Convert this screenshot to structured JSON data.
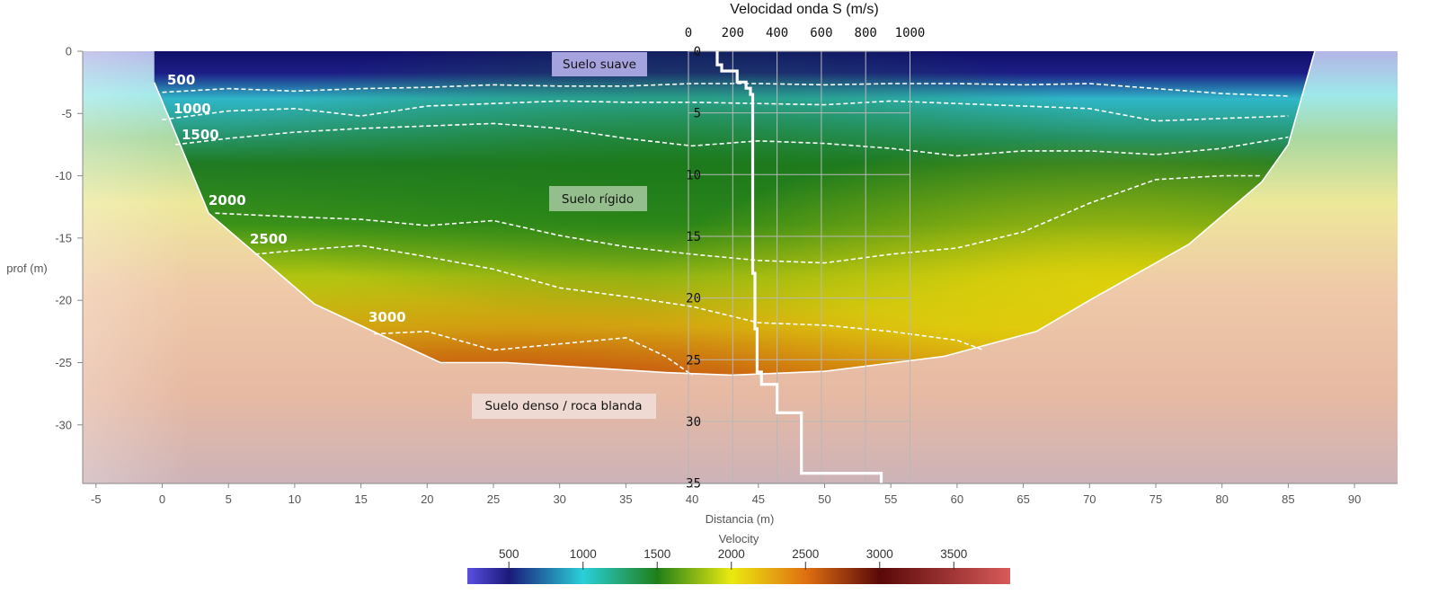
{
  "chart_data": [
    {
      "type": "heatmap",
      "title": "",
      "xlabel": "Distancia (m)",
      "ylabel": "prof (m)",
      "xlim": [
        -6,
        93
      ],
      "ylim": [
        -35,
        0
      ],
      "x_ticks": [
        "-5",
        "0",
        "5",
        "10",
        "15",
        "20",
        "25",
        "30",
        "35",
        "40",
        "45",
        "50",
        "55",
        "60",
        "65",
        "70",
        "75",
        "80",
        "85",
        "90"
      ],
      "y_ticks": [
        "0",
        "-5",
        "-10",
        "-15",
        "-20",
        "-25",
        "-30"
      ],
      "colorbar": {
        "title": "Velocity",
        "range": [
          220,
          3880
        ],
        "ticks": [
          "500",
          "1000",
          "1500",
          "2000",
          "2500",
          "3000",
          "3500"
        ],
        "stops": [
          "#5a4fe0",
          "#1a1a7a",
          "#2ad0d8",
          "#1f7f18",
          "#eaea10",
          "#e07010",
          "#5a0808",
          "#d85a5a"
        ]
      },
      "contours": [
        {
          "label": "500",
          "level": 500,
          "x": [
            0,
            5,
            10,
            15,
            20,
            25,
            30,
            35,
            40,
            45,
            50,
            55,
            60,
            65,
            70,
            75,
            80,
            85
          ],
          "y": [
            -3.3,
            -3.0,
            -3.2,
            -3.0,
            -2.9,
            -2.7,
            -2.8,
            -2.8,
            -2.6,
            -2.6,
            -2.7,
            -2.6,
            -2.6,
            -2.7,
            -2.6,
            -3.0,
            -3.4,
            -3.6
          ]
        },
        {
          "label": "1000",
          "level": 1000,
          "x": [
            0,
            5,
            10,
            15,
            20,
            25,
            30,
            35,
            40,
            45,
            50,
            55,
            60,
            65,
            70,
            75,
            80,
            85
          ],
          "y": [
            -5.5,
            -4.8,
            -4.6,
            -5.2,
            -4.4,
            -4.2,
            -4.0,
            -4.1,
            -4.1,
            -4.2,
            -4.3,
            -4.0,
            -4.2,
            -4.4,
            -4.6,
            -5.6,
            -5.4,
            -5.2
          ]
        },
        {
          "label": "1500",
          "level": 1500,
          "x": [
            1,
            5,
            10,
            15,
            20,
            25,
            30,
            35,
            40,
            45,
            50,
            55,
            60,
            65,
            70,
            75,
            80,
            85
          ],
          "y": [
            -7.5,
            -7.0,
            -6.5,
            -6.2,
            -6.0,
            -5.8,
            -6.2,
            -7.0,
            -7.6,
            -7.2,
            -7.4,
            -7.8,
            -8.4,
            -8.0,
            -8.0,
            -8.3,
            -7.8,
            -6.9
          ]
        },
        {
          "label": "2000",
          "level": 2000,
          "x": [
            4,
            10,
            15,
            20,
            25,
            30,
            35,
            40,
            45,
            50,
            55,
            60,
            65,
            70,
            75,
            80,
            83
          ],
          "y": [
            -13.0,
            -13.3,
            -13.5,
            -14.0,
            -13.6,
            -14.8,
            -15.7,
            -16.3,
            -16.8,
            -17.0,
            -16.3,
            -15.8,
            -14.5,
            -12.2,
            -10.3,
            -10.0,
            -10.0
          ]
        },
        {
          "label": "2500",
          "level": 2500,
          "x": [
            7,
            10,
            15,
            20,
            25,
            30,
            35,
            40,
            45,
            50,
            55,
            60,
            62
          ],
          "y": [
            -16.3,
            -16.0,
            -15.6,
            -16.5,
            -17.5,
            -19.0,
            -19.7,
            -20.5,
            -21.8,
            -22.0,
            -22.5,
            -23.2,
            -24.0
          ]
        },
        {
          "label": "3000",
          "level": 3000,
          "x": [
            16,
            20,
            25,
            30,
            35,
            38,
            40
          ],
          "y": [
            -22.7,
            -22.5,
            -24.0,
            -23.5,
            -23.0,
            -24.5,
            -26.0
          ]
        }
      ],
      "layers": [
        {
          "text": "Suelo suave",
          "color": "#9e9ee0"
        },
        {
          "text": "Suelo rígido",
          "color": "#8fbf8c"
        },
        {
          "text": "Suelo denso / roca blanda",
          "color": "#ecd8d0"
        }
      ]
    },
    {
      "type": "line",
      "title": "Velocidad onda S (m/s)",
      "x_ticks": [
        "0",
        "200",
        "400",
        "600",
        "800",
        "1000"
      ],
      "y_ticks": [
        "0",
        "5",
        "10",
        "15",
        "20",
        "25",
        "30",
        "35"
      ],
      "xlim": [
        0,
        1000
      ],
      "ylim": [
        0,
        35
      ],
      "series": [
        {
          "x": [
            130,
            130,
            150,
            150,
            220,
            220,
            260,
            260,
            280,
            280,
            290,
            290,
            300,
            300,
            310,
            310,
            330,
            330,
            330,
            330,
            400,
            400,
            510,
            510,
            870,
            870
          ],
          "y": [
            0,
            1.1,
            1.1,
            1.6,
            1.6,
            2.5,
            2.5,
            3.0,
            3.0,
            3.5,
            3.5,
            18.0,
            18.0,
            22.5,
            22.5,
            26.0,
            26.0,
            27.0,
            27.0,
            27.0,
            27.0,
            29.3,
            29.3,
            34.2,
            34.2,
            35.0
          ]
        }
      ]
    }
  ]
}
